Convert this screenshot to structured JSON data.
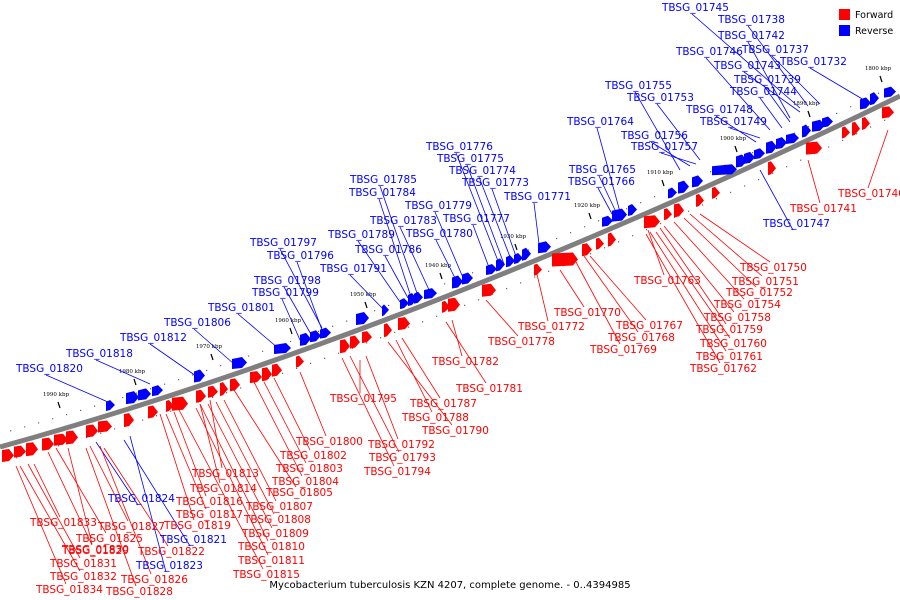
{
  "caption": "Mycobacterium tuberculosis KZN 4207, complete genome. - 0..4394985",
  "legend": [
    {
      "label": "Forward",
      "color": "#ff0000"
    },
    {
      "label": "Reverse",
      "color": "#0000ff"
    }
  ],
  "colors": {
    "forward": "#ff0000",
    "reverse": "#0000ff",
    "axis": "#999999",
    "leader": "#000000"
  },
  "ticks": [
    "1800 kbp",
    "1890 kbp",
    "1900 kbp",
    "1910 kbp",
    "1920 kbp",
    "1930 kbp",
    "1940 kbp",
    "1950 kbp",
    "1960 kbp",
    "1970 kbp",
    "1980 kbp",
    "1990 kbp"
  ],
  "reverse_genes": [
    "TBSG_01745",
    "TBSG_01738",
    "TBSG_01742",
    "TBSG_01746",
    "TBSG_01737",
    "TBSG_01743",
    "TBSG_01732",
    "TBSG_01739",
    "TBSG_01744",
    "TBSG_01755",
    "TBSG_01753",
    "TBSG_01748",
    "TBSG_01764",
    "TBSG_01749",
    "TBSG_01756",
    "TBSG_01757",
    "TBSG_01776",
    "TBSG_01775",
    "TBSG_01765",
    "TBSG_01774",
    "TBSG_01766",
    "TBSG_01773",
    "TBSG_01771",
    "TBSG_01785",
    "TBSG_01784",
    "TBSG_01779",
    "TBSG_01783",
    "TBSG_01777",
    "TBSG_01789",
    "TBSG_01780",
    "TBSG_01797",
    "TBSG_01786",
    "TBSG_01796",
    "TBSG_01791",
    "TBSG_01798",
    "TBSG_01799",
    "TBSG_01801",
    "TBSG_01806",
    "TBSG_01812",
    "TBSG_01818",
    "TBSG_01820",
    "TBSG_01747",
    "TBSG_01824",
    "TBSG_01821",
    "TBSG_01823"
  ],
  "forward_genes": [
    "TBSG_01740",
    "TBSG_01741",
    "TBSG_01763",
    "TBSG_01750",
    "TBSG_01751",
    "TBSG_01752",
    "TBSG_01754",
    "TBSG_01758",
    "TBSG_01759",
    "TBSG_01760",
    "TBSG_01761",
    "TBSG_01762",
    "TBSG_01770",
    "TBSG_01767",
    "TBSG_01772",
    "TBSG_01768",
    "TBSG_01769",
    "TBSG_01778",
    "TBSG_01782",
    "TBSG_01781",
    "TBSG_01795",
    "TBSG_01787",
    "TBSG_01788",
    "TBSG_01790",
    "TBSG_01792",
    "TBSG_01793",
    "TBSG_01794",
    "TBSG_01800",
    "TBSG_01802",
    "TBSG_01803",
    "TBSG_01804",
    "TBSG_01805",
    "TBSG_01813",
    "TBSG_01814",
    "TBSG_01807",
    "TBSG_01816",
    "TBSG_01808",
    "TBSG_01817",
    "TBSG_01809",
    "TBSG_01819",
    "TBSG_01810",
    "TBSG_01811",
    "TBSG_01815",
    "TBSG_01833",
    "TBSG_01825",
    "TBSG_01829",
    "TBSG_01827",
    "TBSG_01830",
    "TBSG_01822",
    "TBSG_01831",
    "TBSG_01832",
    "TBSG_01826",
    "TBSG_01834",
    "TBSG_01828"
  ]
}
